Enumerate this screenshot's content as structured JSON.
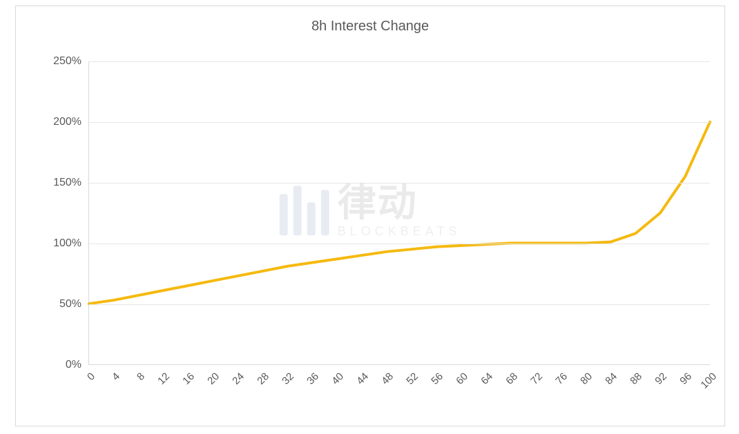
{
  "chart": {
    "type": "line",
    "title": "8h Interest Change",
    "title_fontsize": 20,
    "title_color": "#595959",
    "background_color": "#ffffff",
    "border_color": "#d9d9d9",
    "grid_color": "#e6e6e6",
    "axis_label_color": "#595959",
    "axis_label_fontsize": 16,
    "line_color": "#f5b90f",
    "line_width": 4,
    "xlim": [
      0,
      100
    ],
    "xtick_step": 4,
    "xticks": [
      0,
      4,
      8,
      12,
      16,
      20,
      24,
      28,
      32,
      36,
      40,
      44,
      48,
      52,
      56,
      60,
      64,
      68,
      72,
      76,
      80,
      84,
      88,
      92,
      96,
      100
    ],
    "ylim": [
      0,
      250
    ],
    "ytick_step": 50,
    "yticks": [
      0,
      50,
      100,
      150,
      200,
      250
    ],
    "ytick_labels": [
      "0%",
      "50%",
      "100%",
      "150%",
      "200%",
      "250%"
    ],
    "x_values": [
      0,
      4,
      8,
      12,
      16,
      20,
      24,
      28,
      32,
      36,
      40,
      44,
      48,
      52,
      56,
      60,
      64,
      68,
      72,
      76,
      80,
      84,
      88,
      92,
      96,
      100
    ],
    "y_values": [
      50,
      53,
      57,
      61,
      65,
      69,
      73,
      77,
      81,
      84,
      87,
      90,
      93,
      95,
      97,
      98,
      99,
      100,
      100,
      100,
      100,
      101,
      108,
      125,
      155,
      200
    ]
  },
  "watermark": {
    "cn": "律动",
    "en": "BLOCKBEATS",
    "bar_color": "#4e6b9c"
  }
}
